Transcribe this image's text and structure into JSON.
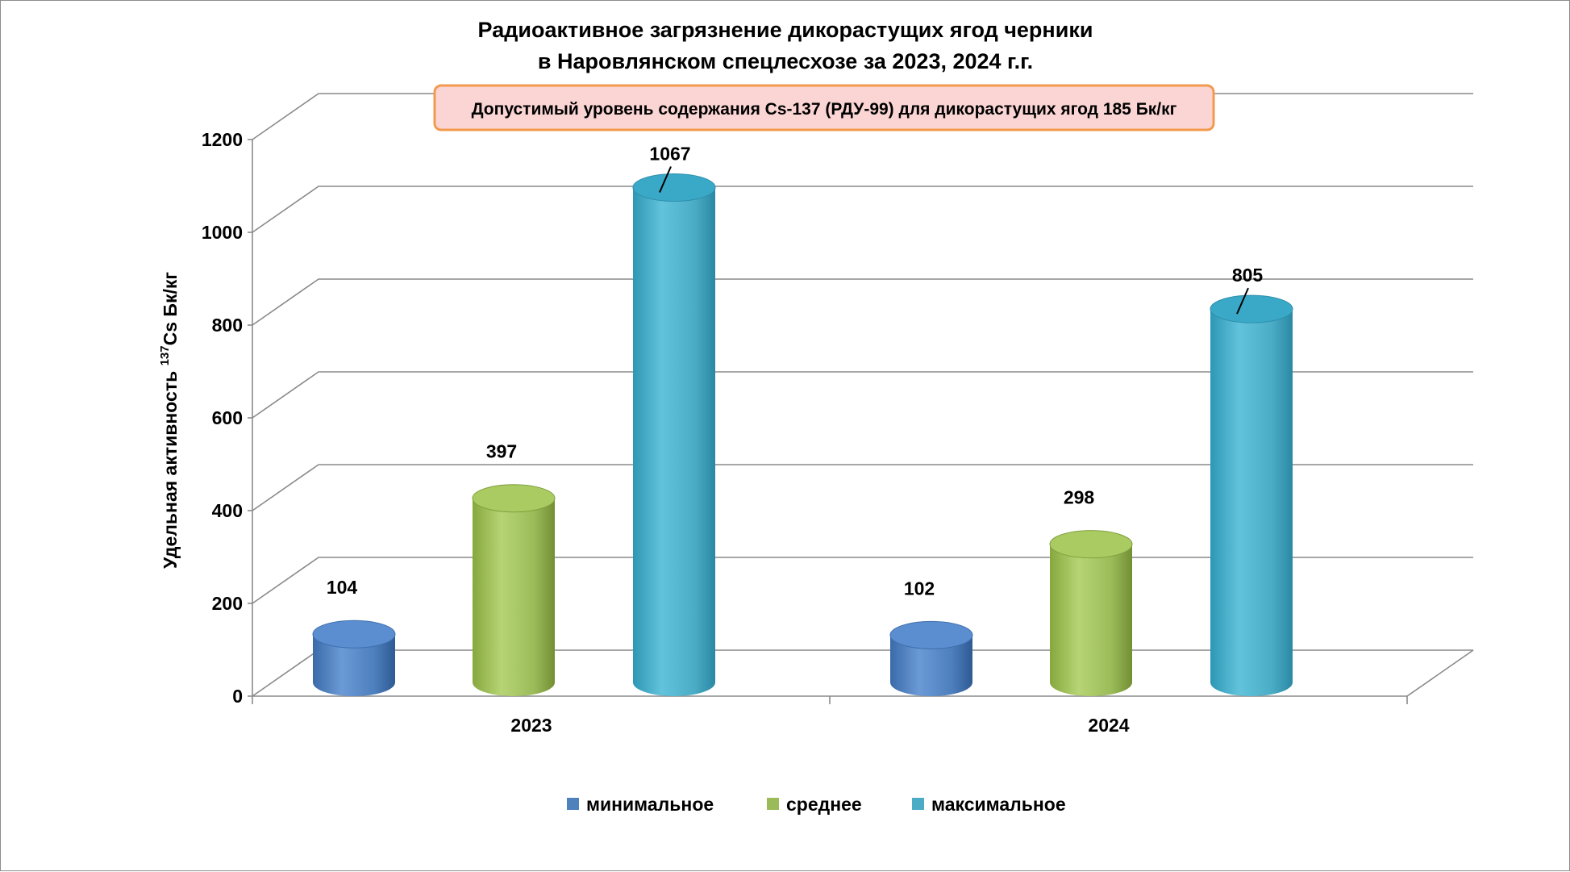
{
  "chart_data": {
    "type": "bar",
    "title": "Радиоактивное загрязнение дикорастущих ягод  черники",
    "subtitle": "в Наровлянском спецлесхозе за 2023, 2024 г.г.",
    "ylabel_main": "Удельная активность ",
    "ylabel_sup": "137",
    "ylabel_unit": "Cs Бк/кг",
    "xlabel": "",
    "categories": [
      "2023",
      "2024"
    ],
    "series": [
      {
        "name": "минимальное",
        "values": [
          104,
          102
        ],
        "color": "#4f81bd"
      },
      {
        "name": "среднее",
        "values": [
          397,
          298
        ],
        "color": "#9bbb59"
      },
      {
        "name": "максимальное",
        "values": [
          1067,
          805
        ],
        "color": "#4bacc6"
      }
    ],
    "ylim": [
      0,
      1200
    ],
    "yticks": [
      0,
      200,
      400,
      600,
      800,
      1000,
      1200
    ],
    "grid": true,
    "legend_position": "bottom",
    "annotation": "Допустимый уровень содержания Cs-137 (РДУ-99) для дикорастущих ягод 185 Бк/кг",
    "annotation_colors": {
      "fill": "#fbd5d4",
      "border": "#f39a4e"
    }
  }
}
